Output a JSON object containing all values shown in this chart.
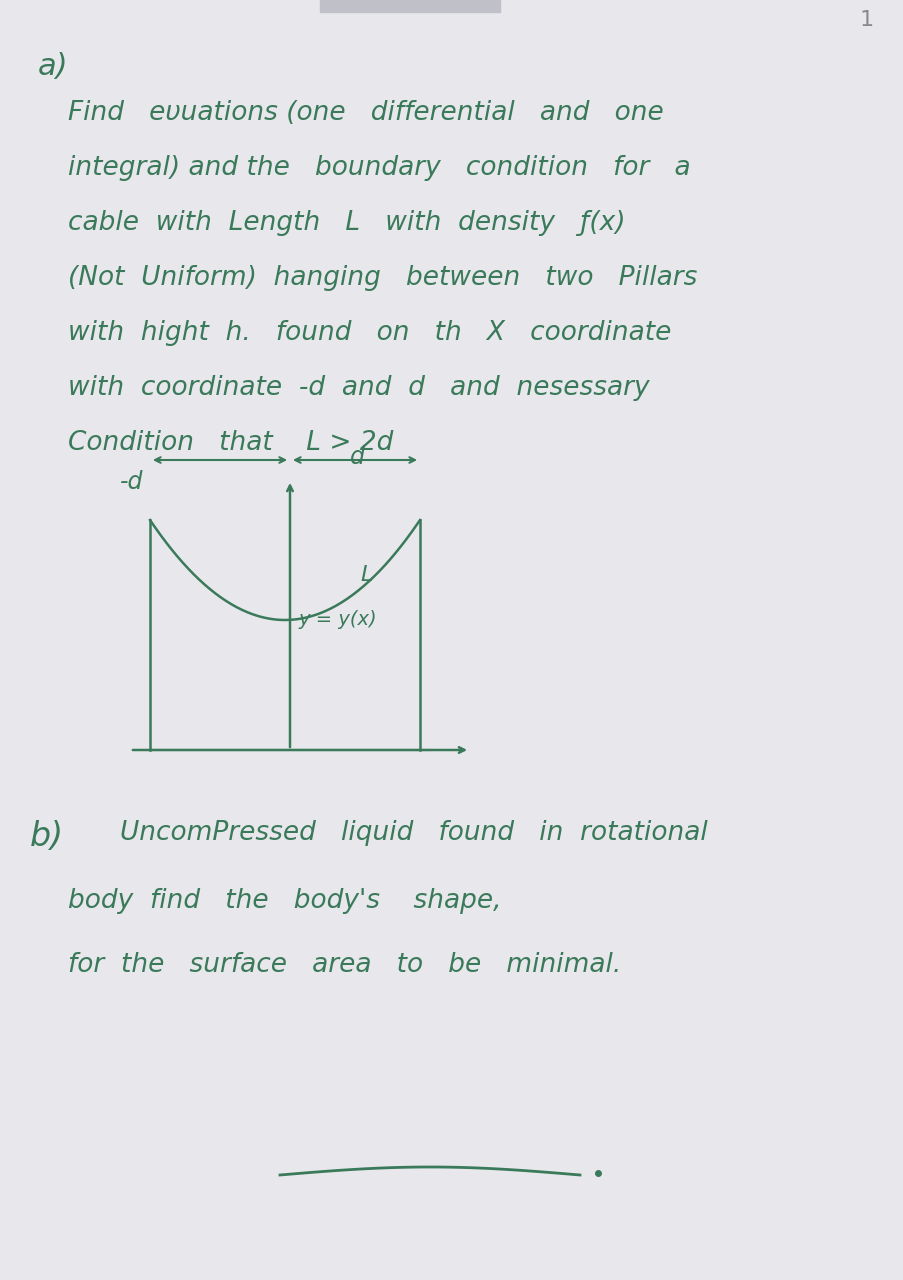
{
  "bg_color": "#e8e8ec",
  "text_color": "#3a7a5a",
  "title_a": "a)",
  "line1": "Find   eυuations (one   differential   and   one",
  "line2": "integral) and the   boundary   condition   for   a",
  "line3": "cable  with  Length   L   with  density   ƒ(x)",
  "line4": "(Not  Uniform)  hanging   between   two   Pillars",
  "line5": "with  hight  h.   found   on   th   X   coordinate",
  "line6": "with  coordinate  -d  and  d   and  nesessary",
  "line7": "Condition   that    L > 2d",
  "label_neg_d": "-d",
  "label_d": "d",
  "label_L": "L",
  "label_y": "y = y(x)",
  "title_b": "b)",
  "line_b1": "UncomPressed   liquid   found   in  rotational",
  "line_b2": "body  find   the   body's    shape,",
  "line_b3": "for  the   surface   area   to   be   minimal."
}
